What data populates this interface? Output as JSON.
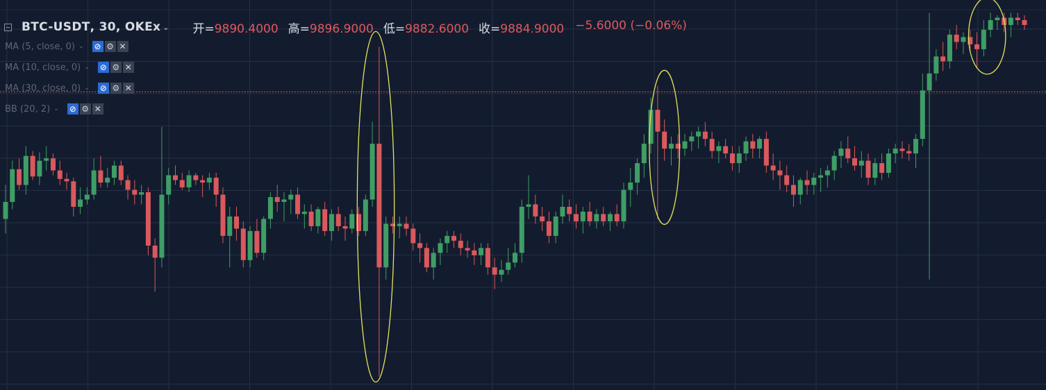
{
  "header": {
    "symbol": "BTC-USDT",
    "interval_exchange": ", 30, OKEx",
    "ohlc": [
      {
        "label": "开=",
        "value": "9890.4000"
      },
      {
        "label": "高=",
        "value": "9896.9000"
      },
      {
        "label": "低=",
        "value": "9882.6000"
      },
      {
        "label": "收=",
        "value": "9884.9000"
      }
    ],
    "change": "−5.6000 (−0.06%)"
  },
  "indicators": [
    {
      "label": "MA (5, close, 0)"
    },
    {
      "label": "MA (10, close, 0)"
    },
    {
      "label": "MA (30, close, 0)"
    },
    {
      "label": "BB (20, 2)"
    }
  ],
  "icons": {
    "visibility": "eye-slash-icon",
    "settings": "gear-icon",
    "remove": "close-icon"
  },
  "colors": {
    "background": "#131c2e",
    "grid": "#243047",
    "up": "#3f9e66",
    "down": "#d9595d",
    "highlight": "#e8e35a",
    "price_line": "#d9595d"
  },
  "chart_data": {
    "type": "candlestick",
    "symbol": "BTC-USDT",
    "interval": "30",
    "exchange": "OKEx",
    "last": {
      "open": 9890.4,
      "high": 9896.9,
      "low": 9882.6,
      "close": 9884.9,
      "change": -5.6,
      "change_pct": -0.06
    },
    "ylim": [
      9640,
      9952
    ],
    "current_price_line": 9884.9,
    "candles": [
      [
        9780,
        9808,
        9768,
        9794
      ],
      [
        9794,
        9828,
        9788,
        9821
      ],
      [
        9821,
        9830,
        9804,
        9808
      ],
      [
        9808,
        9840,
        9800,
        9832
      ],
      [
        9832,
        9836,
        9812,
        9815
      ],
      [
        9815,
        9835,
        9808,
        9828
      ],
      [
        9828,
        9840,
        9820,
        9830
      ],
      [
        9830,
        9834,
        9816,
        9820
      ],
      [
        9820,
        9828,
        9808,
        9813
      ],
      [
        9813,
        9818,
        9804,
        9811
      ],
      [
        9811,
        9814,
        9782,
        9790
      ],
      [
        9790,
        9806,
        9784,
        9796
      ],
      [
        9796,
        9806,
        9792,
        9800
      ],
      [
        9800,
        9830,
        9796,
        9820
      ],
      [
        9820,
        9832,
        9806,
        9810
      ],
      [
        9810,
        9822,
        9806,
        9814
      ],
      [
        9814,
        9828,
        9808,
        9824
      ],
      [
        9824,
        9828,
        9808,
        9812
      ],
      [
        9812,
        9816,
        9796,
        9804
      ],
      [
        9804,
        9812,
        9792,
        9800
      ],
      [
        9800,
        9808,
        9792,
        9802
      ],
      [
        9802,
        9806,
        9750,
        9758
      ],
      [
        9758,
        9764,
        9720,
        9748
      ],
      [
        9748,
        9856,
        9740,
        9800
      ],
      [
        9800,
        9822,
        9792,
        9816
      ],
      [
        9816,
        9824,
        9808,
        9812
      ],
      [
        9812,
        9818,
        9804,
        9806
      ],
      [
        9806,
        9820,
        9802,
        9816
      ],
      [
        9816,
        9818,
        9808,
        9812
      ],
      [
        9812,
        9816,
        9798,
        9810
      ],
      [
        9810,
        9818,
        9804,
        9814
      ],
      [
        9814,
        9818,
        9790,
        9800
      ],
      [
        9800,
        9806,
        9760,
        9766
      ],
      [
        9766,
        9790,
        9740,
        9782
      ],
      [
        9782,
        9790,
        9762,
        9772
      ],
      [
        9772,
        9778,
        9740,
        9746
      ],
      [
        9746,
        9774,
        9740,
        9770
      ],
      [
        9770,
        9780,
        9748,
        9752
      ],
      [
        9752,
        9782,
        9746,
        9780
      ],
      [
        9780,
        9802,
        9772,
        9798
      ],
      [
        9798,
        9808,
        9786,
        9794
      ],
      [
        9794,
        9802,
        9778,
        9796
      ],
      [
        9796,
        9804,
        9784,
        9800
      ],
      [
        9800,
        9806,
        9780,
        9784
      ],
      [
        9784,
        9792,
        9772,
        9786
      ],
      [
        9786,
        9792,
        9770,
        9774
      ],
      [
        9774,
        9790,
        9768,
        9788
      ],
      [
        9788,
        9794,
        9766,
        9770
      ],
      [
        9770,
        9788,
        9762,
        9784
      ],
      [
        9784,
        9790,
        9770,
        9774
      ],
      [
        9774,
        9782,
        9762,
        9772
      ],
      [
        9772,
        9788,
        9768,
        9784
      ],
      [
        9784,
        9790,
        9766,
        9770
      ],
      [
        9770,
        9800,
        9766,
        9796
      ],
      [
        9796,
        9860,
        9790,
        9842
      ],
      [
        9842,
        9922,
        9650,
        9740
      ],
      [
        9740,
        9782,
        9730,
        9776
      ],
      [
        9776,
        9782,
        9768,
        9774
      ],
      [
        9774,
        9782,
        9764,
        9776
      ],
      [
        9776,
        9782,
        9766,
        9772
      ],
      [
        9772,
        9776,
        9754,
        9760
      ],
      [
        9760,
        9768,
        9744,
        9756
      ],
      [
        9756,
        9760,
        9736,
        9740
      ],
      [
        9740,
        9756,
        9730,
        9752
      ],
      [
        9752,
        9764,
        9742,
        9760
      ],
      [
        9760,
        9770,
        9752,
        9766
      ],
      [
        9766,
        9770,
        9756,
        9762
      ],
      [
        9762,
        9768,
        9750,
        9756
      ],
      [
        9756,
        9762,
        9748,
        9754
      ],
      [
        9754,
        9760,
        9742,
        9750
      ],
      [
        9750,
        9760,
        9742,
        9756
      ],
      [
        9756,
        9760,
        9734,
        9740
      ],
      [
        9740,
        9748,
        9722,
        9734
      ],
      [
        9734,
        9746,
        9728,
        9738
      ],
      [
        9738,
        9756,
        9734,
        9744
      ],
      [
        9744,
        9760,
        9740,
        9752
      ],
      [
        9752,
        9796,
        9744,
        9790
      ],
      [
        9790,
        9816,
        9780,
        9792
      ],
      [
        9792,
        9800,
        9776,
        9782
      ],
      [
        9782,
        9790,
        9770,
        9778
      ],
      [
        9778,
        9786,
        9760,
        9766
      ],
      [
        9766,
        9786,
        9760,
        9782
      ],
      [
        9782,
        9800,
        9776,
        9790
      ],
      [
        9790,
        9796,
        9778,
        9784
      ],
      [
        9784,
        9792,
        9772,
        9778
      ],
      [
        9778,
        9790,
        9768,
        9786
      ],
      [
        9786,
        9794,
        9774,
        9778
      ],
      [
        9778,
        9788,
        9772,
        9784
      ],
      [
        9784,
        9790,
        9774,
        9778
      ],
      [
        9778,
        9786,
        9770,
        9784
      ],
      [
        9784,
        9792,
        9774,
        9778
      ],
      [
        9778,
        9810,
        9772,
        9804
      ],
      [
        9804,
        9822,
        9790,
        9810
      ],
      [
        9810,
        9830,
        9800,
        9826
      ],
      [
        9826,
        9850,
        9814,
        9842
      ],
      [
        9842,
        9880,
        9834,
        9870
      ],
      [
        9870,
        9890,
        9780,
        9852
      ],
      [
        9852,
        9862,
        9828,
        9838
      ],
      [
        9838,
        9848,
        9824,
        9842
      ],
      [
        9842,
        9850,
        9830,
        9838
      ],
      [
        9838,
        9850,
        9832,
        9844
      ],
      [
        9844,
        9852,
        9836,
        9848
      ],
      [
        9848,
        9856,
        9838,
        9852
      ],
      [
        9852,
        9860,
        9840,
        9846
      ],
      [
        9846,
        9852,
        9830,
        9836
      ],
      [
        9836,
        9844,
        9826,
        9840
      ],
      [
        9840,
        9846,
        9830,
        9834
      ],
      [
        9834,
        9840,
        9820,
        9826
      ],
      [
        9826,
        9840,
        9818,
        9834
      ],
      [
        9834,
        9848,
        9828,
        9844
      ],
      [
        9844,
        9850,
        9830,
        9838
      ],
      [
        9838,
        9848,
        9830,
        9846
      ],
      [
        9846,
        9852,
        9818,
        9824
      ],
      [
        9824,
        9834,
        9812,
        9820
      ],
      [
        9820,
        9828,
        9804,
        9816
      ],
      [
        9816,
        9824,
        9802,
        9808
      ],
      [
        9808,
        9816,
        9790,
        9800
      ],
      [
        9800,
        9814,
        9792,
        9812
      ],
      [
        9812,
        9820,
        9800,
        9808
      ],
      [
        9808,
        9818,
        9800,
        9814
      ],
      [
        9814,
        9822,
        9802,
        9816
      ],
      [
        9816,
        9824,
        9806,
        9820
      ],
      [
        9820,
        9836,
        9812,
        9832
      ],
      [
        9832,
        9844,
        9822,
        9838
      ],
      [
        9838,
        9848,
        9826,
        9830
      ],
      [
        9830,
        9840,
        9820,
        9824
      ],
      [
        9824,
        9836,
        9814,
        9828
      ],
      [
        9828,
        9834,
        9808,
        9814
      ],
      [
        9814,
        9830,
        9808,
        9826
      ],
      [
        9826,
        9834,
        9812,
        9818
      ],
      [
        9818,
        9838,
        9814,
        9834
      ],
      [
        9834,
        9842,
        9826,
        9838
      ],
      [
        9838,
        9844,
        9830,
        9836
      ],
      [
        9836,
        9842,
        9828,
        9834
      ],
      [
        9834,
        9850,
        9822,
        9846
      ],
      [
        9846,
        9900,
        9840,
        9886
      ],
      [
        9886,
        9950,
        9730,
        9900
      ],
      [
        9900,
        9920,
        9894,
        9914
      ],
      [
        9914,
        9926,
        9902,
        9910
      ],
      [
        9910,
        9936,
        9904,
        9932
      ],
      [
        9932,
        9940,
        9920,
        9926
      ],
      [
        9926,
        9934,
        9916,
        9930
      ],
      [
        9930,
        9936,
        9918,
        9924
      ],
      [
        9924,
        9934,
        9904,
        9920
      ],
      [
        9920,
        9944,
        9914,
        9936
      ],
      [
        9936,
        9950,
        9930,
        9944
      ],
      [
        9944,
        9948,
        9936,
        9946
      ],
      [
        9946,
        9950,
        9934,
        9940
      ],
      [
        9940,
        9950,
        9930,
        9946
      ],
      [
        9946,
        9950,
        9940,
        9944
      ],
      [
        9944,
        9948,
        9936,
        9940
      ]
    ],
    "highlights": [
      {
        "from_candle": 53,
        "to_candle": 56
      },
      {
        "from_candle": 96,
        "to_candle": 98
      },
      {
        "from_candle": 143,
        "to_candle": 146
      }
    ]
  }
}
